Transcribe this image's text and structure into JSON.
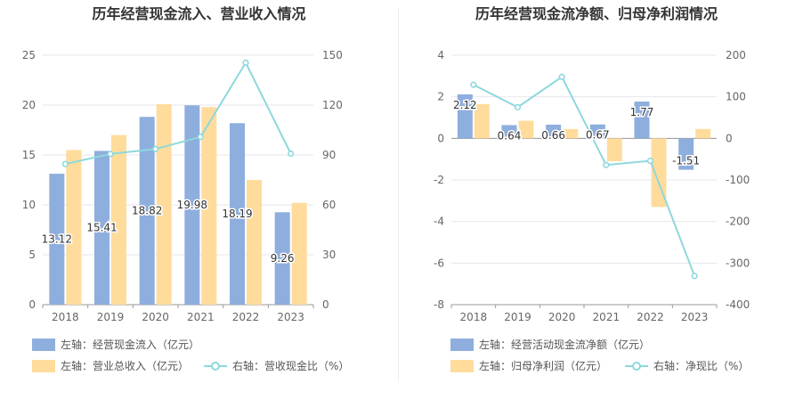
{
  "chart_data": [
    {
      "type": "bar+line",
      "title": "历年经营现金流入、营业收入情况",
      "categories": [
        "2018",
        "2019",
        "2020",
        "2021",
        "2022",
        "2023"
      ],
      "left_axis": {
        "ticks": [
          "0",
          "5",
          "10",
          "15",
          "20",
          "25"
        ],
        "ylim": [
          0,
          25
        ]
      },
      "right_axis": {
        "ticks": [
          "0",
          "30",
          "60",
          "90",
          "120",
          "150"
        ],
        "ylim": [
          0,
          150
        ]
      },
      "series": [
        {
          "name": "左轴：经营现金流入（亿元）",
          "type": "bar",
          "axis": "left",
          "color": "#8eaedd",
          "values": [
            13.12,
            15.41,
            18.82,
            19.98,
            18.19,
            9.26
          ],
          "labels": [
            "13.12",
            "15.41",
            "18.82",
            "19.98",
            "18.19",
            "9.26"
          ]
        },
        {
          "name": "左轴：营业总收入（亿元）",
          "type": "bar",
          "axis": "left",
          "color": "#ffdc9c",
          "values": [
            15.5,
            17.0,
            20.1,
            19.8,
            12.5,
            10.2
          ]
        },
        {
          "name": "右轴：营收现金比（%）",
          "type": "line",
          "axis": "right",
          "color": "#8dd8dc",
          "values": [
            84.6,
            90.6,
            93.6,
            100.9,
            145.5,
            90.8
          ]
        }
      ],
      "grid": true,
      "legend_position": "bottom-left"
    },
    {
      "type": "bar+line",
      "title": "历年经营现金流净额、归母净利润情况",
      "categories": [
        "2018",
        "2019",
        "2020",
        "2021",
        "2022",
        "2023"
      ],
      "left_axis": {
        "ticks": [
          "-8",
          "-6",
          "-4",
          "-2",
          "0",
          "2",
          "4"
        ],
        "ylim": [
          -8,
          4
        ]
      },
      "right_axis": {
        "ticks": [
          "-400",
          "-300",
          "-200",
          "-100",
          "0",
          "100",
          "200"
        ],
        "ylim": [
          -400,
          200
        ]
      },
      "series": [
        {
          "name": "左轴：经营活动现金流净额（亿元）",
          "type": "bar",
          "axis": "left",
          "color": "#8eaedd",
          "values": [
            2.12,
            0.64,
            0.66,
            0.67,
            1.77,
            -1.51
          ],
          "labels": [
            "2.12",
            "0.64",
            "0.66",
            "0.67",
            "1.77",
            "-1.51"
          ]
        },
        {
          "name": "左轴：归母净利润（亿元）",
          "type": "bar",
          "axis": "left",
          "color": "#ffdc9c",
          "values": [
            1.65,
            0.85,
            0.45,
            -1.1,
            -3.3,
            0.45
          ]
        },
        {
          "name": "右轴：净现比（%）",
          "type": "line",
          "axis": "right",
          "color": "#8dd8dc",
          "values": [
            129,
            75,
            148,
            -64,
            -54,
            -331
          ]
        }
      ],
      "grid": true,
      "legend_position": "bottom-left"
    }
  ]
}
